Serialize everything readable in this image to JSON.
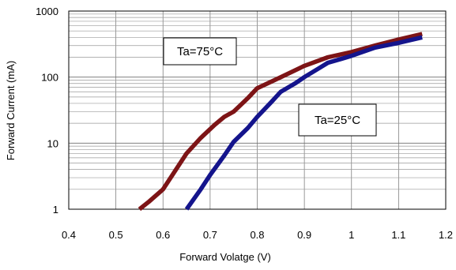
{
  "chart_data": {
    "type": "line",
    "xlabel": "Forward Volatge (V)",
    "ylabel": "Forward Current (mA)",
    "xlim": [
      0.4,
      1.2
    ],
    "ylim": [
      1,
      1000
    ],
    "yscale": "log",
    "grid": true,
    "x_ticks": [
      "0.4",
      "0.5",
      "0.6",
      "0.7",
      "0.8",
      "0.9",
      "1",
      "1.1",
      "1.2"
    ],
    "y_ticks": [
      "1",
      "10",
      "100",
      "1000"
    ],
    "colors": {
      "ta25": "#14148c",
      "ta75": "#7d1416"
    },
    "series": [
      {
        "key": "ta75",
        "x": [
          0.55,
          0.57,
          0.6,
          0.62,
          0.65,
          0.68,
          0.71,
          0.73,
          0.75,
          0.78,
          0.8,
          0.85,
          0.9,
          0.95,
          1.0,
          1.05,
          1.1,
          1.15
        ],
        "y": [
          1,
          1.3,
          2,
          3.3,
          7,
          12,
          19,
          25,
          30,
          48,
          68,
          100,
          148,
          200,
          240,
          300,
          370,
          450
        ]
      },
      {
        "key": "ta25",
        "x": [
          0.65,
          0.68,
          0.7,
          0.73,
          0.75,
          0.78,
          0.8,
          0.83,
          0.85,
          0.88,
          0.9,
          0.93,
          0.95,
          0.98,
          1.0,
          1.05,
          1.1,
          1.15
        ],
        "y": [
          1,
          2,
          3.3,
          6.5,
          10.5,
          17,
          25,
          42,
          60,
          80,
          100,
          135,
          165,
          190,
          210,
          280,
          330,
          400
        ]
      }
    ],
    "annotations": [
      {
        "key": "ta75",
        "text": "Ta=75°C"
      },
      {
        "key": "ta25",
        "text": "Ta=25°C"
      }
    ]
  }
}
